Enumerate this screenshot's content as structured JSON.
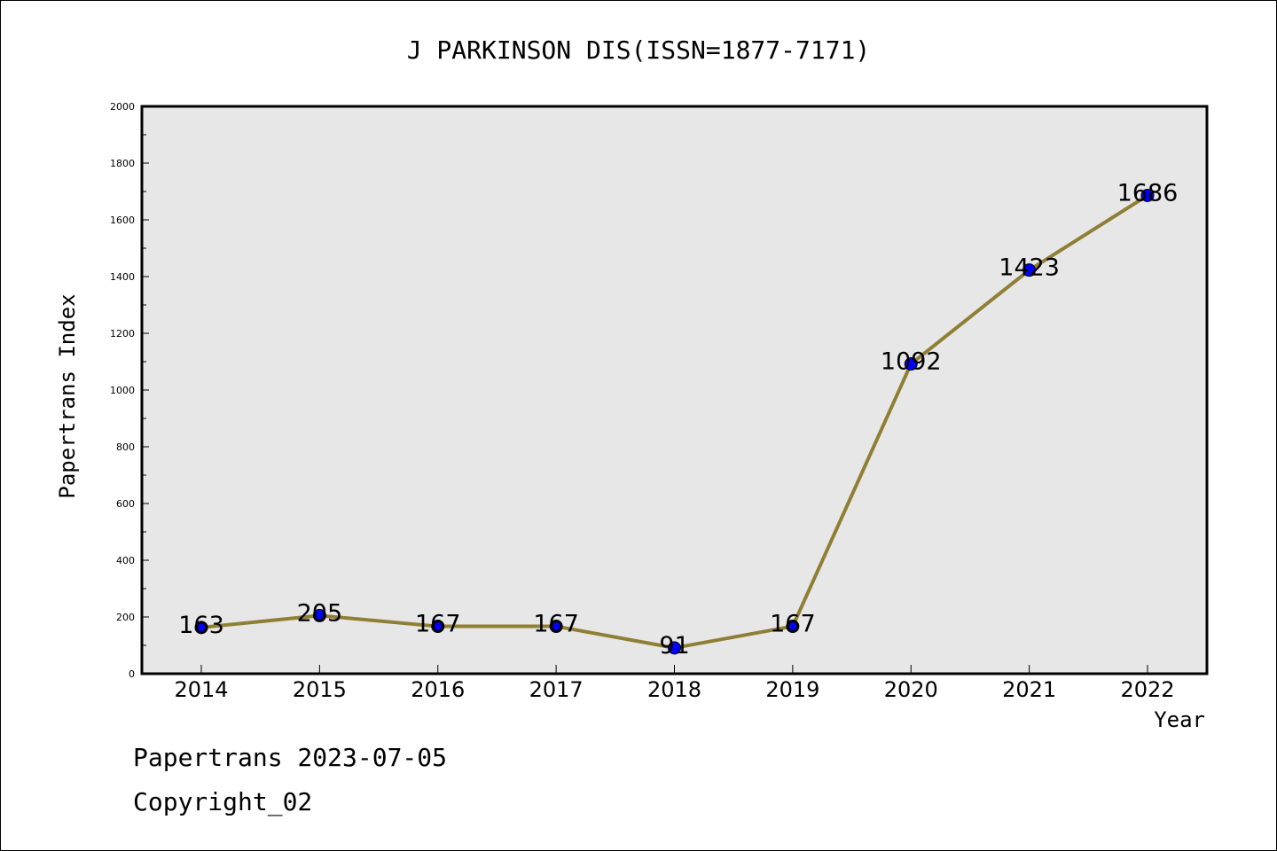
{
  "chart_data": {
    "type": "line",
    "title": "J PARKINSON DIS(ISSN=1877-7171)",
    "xlabel": "Year",
    "ylabel": "Papertrans Index",
    "categories": [
      "2014",
      "2015",
      "2016",
      "2017",
      "2018",
      "2019",
      "2020",
      "2021",
      "2022"
    ],
    "series": [
      {
        "values": [
          163,
          205,
          167,
          167,
          91,
          167,
          1092,
          1423,
          1686
        ]
      }
    ],
    "data_labels": [
      "163",
      "205",
      "167",
      "167",
      "91",
      "167",
      "1092",
      "1423",
      "1686"
    ],
    "ylim": [
      0,
      2000
    ],
    "yticks": [
      0,
      200,
      400,
      600,
      800,
      1000,
      1200,
      1400,
      1600,
      1800,
      2000
    ],
    "grid": false,
    "colors": {
      "line": "#8f7f35",
      "marker": "#0000ff",
      "plot_background": "#e7e7e7"
    }
  },
  "footer": {
    "line1": "Papertrans 2023-07-05",
    "line2": "Copyright_02"
  }
}
